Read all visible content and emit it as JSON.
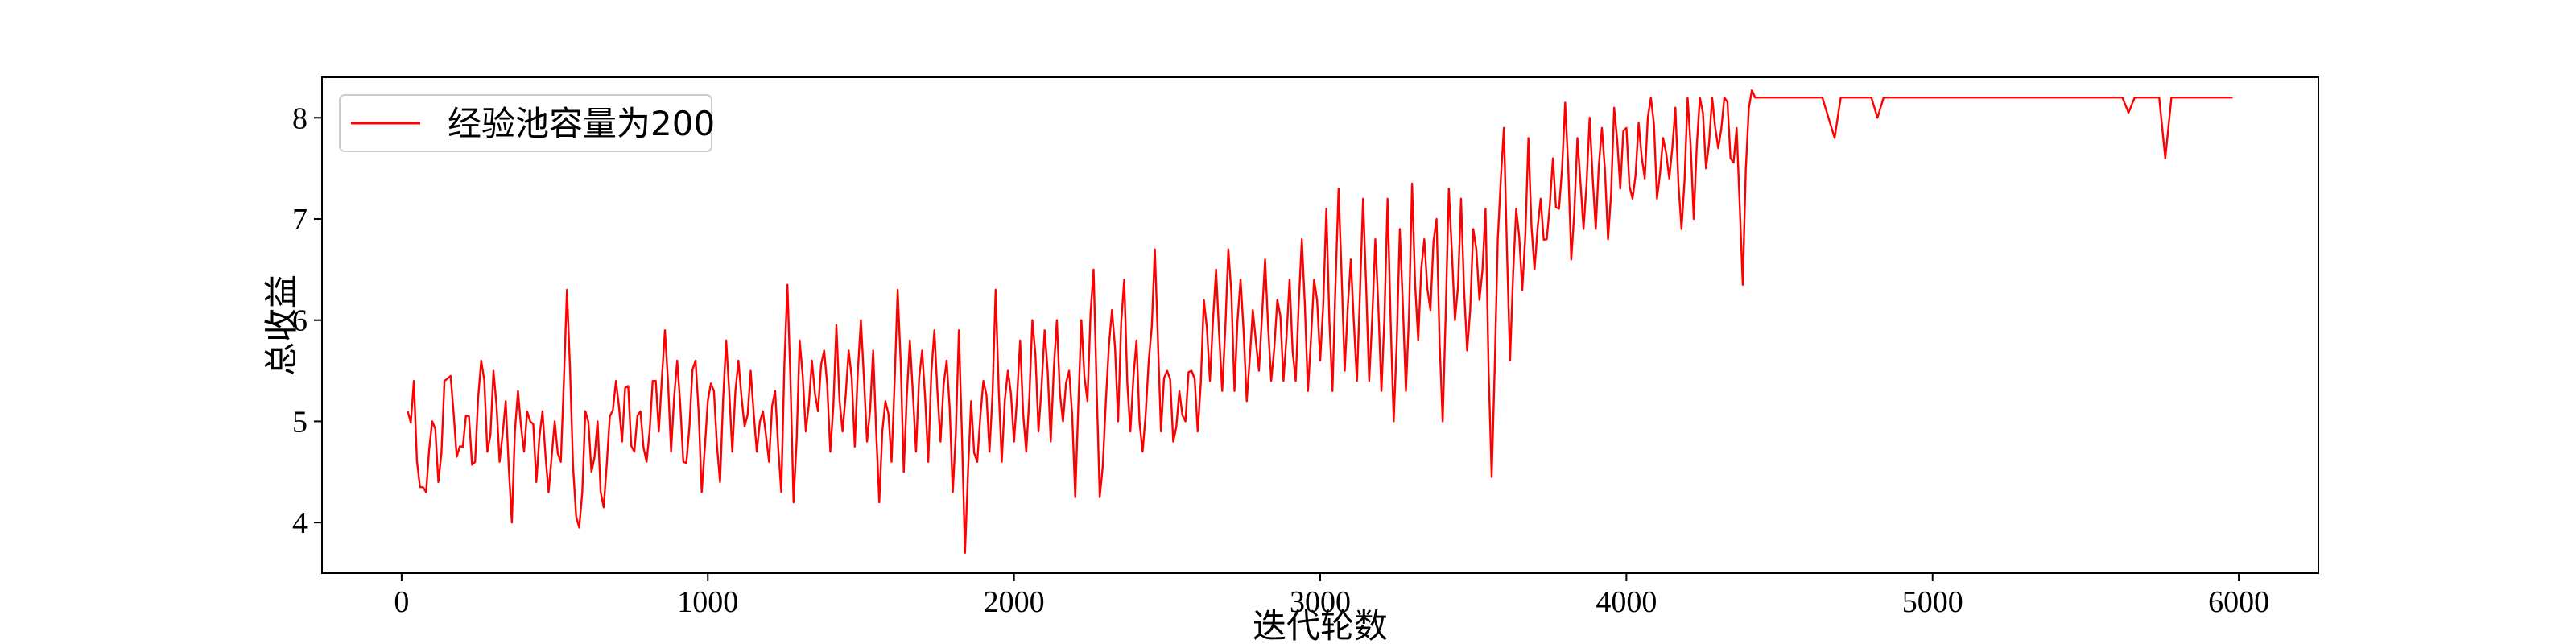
{
  "chart_data": {
    "type": "line",
    "title": "",
    "xlabel": "迭代轮数",
    "ylabel": "总收益",
    "xlim": [
      -260,
      6260
    ],
    "ylim": [
      3.5,
      8.4
    ],
    "xticks": [
      0,
      1000,
      2000,
      3000,
      4000,
      5000,
      6000
    ],
    "yticks": [
      4,
      5,
      6,
      7,
      8
    ],
    "grid": false,
    "legend_position": "upper-left",
    "series": [
      {
        "name": "经验池容量为200",
        "color": "#ff0000",
        "x_start": 20,
        "x_step": 10,
        "keypoints": [
          [
            20,
            5.1
          ],
          [
            40,
            5.4
          ],
          [
            60,
            4.35
          ],
          [
            80,
            4.3
          ],
          [
            100,
            5.0
          ],
          [
            120,
            4.4
          ],
          [
            140,
            5.4
          ],
          [
            160,
            5.45
          ],
          [
            180,
            4.65
          ],
          [
            200,
            4.75
          ],
          [
            220,
            5.05
          ],
          [
            240,
            4.6
          ],
          [
            260,
            5.6
          ],
          [
            280,
            4.7
          ],
          [
            300,
            5.5
          ],
          [
            320,
            4.6
          ],
          [
            340,
            5.2
          ],
          [
            360,
            4.0
          ],
          [
            380,
            5.3
          ],
          [
            400,
            4.7
          ],
          [
            420,
            5.0
          ],
          [
            440,
            4.4
          ],
          [
            460,
            5.1
          ],
          [
            480,
            4.3
          ],
          [
            500,
            5.0
          ],
          [
            520,
            4.6
          ],
          [
            540,
            6.3
          ],
          [
            560,
            4.55
          ],
          [
            580,
            3.95
          ],
          [
            600,
            5.1
          ],
          [
            620,
            4.5
          ],
          [
            640,
            5.0
          ],
          [
            660,
            4.15
          ],
          [
            680,
            5.05
          ],
          [
            700,
            5.4
          ],
          [
            720,
            4.8
          ],
          [
            740,
            5.35
          ],
          [
            760,
            4.7
          ],
          [
            780,
            5.1
          ],
          [
            800,
            4.6
          ],
          [
            820,
            5.4
          ],
          [
            840,
            4.9
          ],
          [
            860,
            5.9
          ],
          [
            880,
            4.7
          ],
          [
            900,
            5.6
          ],
          [
            920,
            4.6
          ],
          [
            940,
            4.95
          ],
          [
            960,
            5.6
          ],
          [
            980,
            4.3
          ],
          [
            1000,
            5.2
          ],
          [
            1020,
            5.3
          ],
          [
            1040,
            4.4
          ],
          [
            1060,
            5.8
          ],
          [
            1080,
            4.7
          ],
          [
            1100,
            5.6
          ],
          [
            1120,
            4.95
          ],
          [
            1140,
            5.5
          ],
          [
            1160,
            4.7
          ],
          [
            1180,
            5.1
          ],
          [
            1200,
            4.6
          ],
          [
            1220,
            5.3
          ],
          [
            1240,
            4.3
          ],
          [
            1260,
            6.35
          ],
          [
            1280,
            4.2
          ],
          [
            1300,
            5.8
          ],
          [
            1320,
            4.9
          ],
          [
            1340,
            5.6
          ],
          [
            1360,
            5.1
          ],
          [
            1380,
            5.7
          ],
          [
            1400,
            4.7
          ],
          [
            1420,
            5.95
          ],
          [
            1440,
            4.9
          ],
          [
            1460,
            5.7
          ],
          [
            1480,
            4.75
          ],
          [
            1500,
            6.0
          ],
          [
            1520,
            4.8
          ],
          [
            1540,
            5.7
          ],
          [
            1560,
            4.2
          ],
          [
            1580,
            5.2
          ],
          [
            1600,
            4.6
          ],
          [
            1620,
            6.3
          ],
          [
            1640,
            4.5
          ],
          [
            1660,
            5.8
          ],
          [
            1680,
            4.7
          ],
          [
            1700,
            5.7
          ],
          [
            1720,
            4.6
          ],
          [
            1740,
            5.9
          ],
          [
            1760,
            4.8
          ],
          [
            1780,
            5.6
          ],
          [
            1800,
            4.3
          ],
          [
            1820,
            5.9
          ],
          [
            1840,
            3.7
          ],
          [
            1860,
            5.2
          ],
          [
            1880,
            4.6
          ],
          [
            1900,
            5.4
          ],
          [
            1920,
            4.7
          ],
          [
            1940,
            6.3
          ],
          [
            1960,
            4.6
          ],
          [
            1980,
            5.5
          ],
          [
            2000,
            4.8
          ],
          [
            2020,
            5.8
          ],
          [
            2040,
            4.7
          ],
          [
            2060,
            6.0
          ],
          [
            2080,
            4.9
          ],
          [
            2100,
            5.9
          ],
          [
            2120,
            4.8
          ],
          [
            2140,
            6.0
          ],
          [
            2160,
            5.0
          ],
          [
            2180,
            5.5
          ],
          [
            2200,
            4.25
          ],
          [
            2220,
            6.0
          ],
          [
            2240,
            5.2
          ],
          [
            2260,
            6.5
          ],
          [
            2280,
            4.25
          ],
          [
            2300,
            5.2
          ],
          [
            2320,
            6.1
          ],
          [
            2340,
            5.0
          ],
          [
            2360,
            6.4
          ],
          [
            2380,
            4.9
          ],
          [
            2400,
            5.8
          ],
          [
            2420,
            4.7
          ],
          [
            2440,
            5.6
          ],
          [
            2460,
            6.7
          ],
          [
            2480,
            4.9
          ],
          [
            2500,
            5.5
          ],
          [
            2520,
            4.8
          ],
          [
            2540,
            5.3
          ],
          [
            2560,
            5.0
          ],
          [
            2580,
            5.5
          ],
          [
            2600,
            4.9
          ],
          [
            2620,
            6.2
          ],
          [
            2640,
            5.4
          ],
          [
            2660,
            6.5
          ],
          [
            2680,
            5.3
          ],
          [
            2700,
            6.7
          ],
          [
            2720,
            5.3
          ],
          [
            2740,
            6.4
          ],
          [
            2760,
            5.2
          ],
          [
            2780,
            6.1
          ],
          [
            2800,
            5.5
          ],
          [
            2820,
            6.6
          ],
          [
            2840,
            5.4
          ],
          [
            2860,
            6.2
          ],
          [
            2880,
            5.4
          ],
          [
            2900,
            6.4
          ],
          [
            2920,
            5.4
          ],
          [
            2940,
            6.8
          ],
          [
            2960,
            5.3
          ],
          [
            2980,
            6.4
          ],
          [
            3000,
            5.6
          ],
          [
            3020,
            7.1
          ],
          [
            3040,
            5.3
          ],
          [
            3060,
            7.3
          ],
          [
            3080,
            5.5
          ],
          [
            3100,
            6.6
          ],
          [
            3120,
            5.4
          ],
          [
            3140,
            7.2
          ],
          [
            3160,
            5.4
          ],
          [
            3180,
            6.8
          ],
          [
            3200,
            5.3
          ],
          [
            3220,
            7.2
          ],
          [
            3240,
            5.0
          ],
          [
            3260,
            6.9
          ],
          [
            3280,
            5.3
          ],
          [
            3300,
            7.35
          ],
          [
            3320,
            5.8
          ],
          [
            3340,
            6.8
          ],
          [
            3360,
            6.1
          ],
          [
            3380,
            7.0
          ],
          [
            3400,
            5.0
          ],
          [
            3420,
            7.3
          ],
          [
            3440,
            6.0
          ],
          [
            3460,
            7.2
          ],
          [
            3480,
            5.7
          ],
          [
            3500,
            6.9
          ],
          [
            3520,
            6.2
          ],
          [
            3540,
            7.1
          ],
          [
            3560,
            4.45
          ],
          [
            3580,
            6.8
          ],
          [
            3600,
            7.9
          ],
          [
            3620,
            5.6
          ],
          [
            3640,
            7.1
          ],
          [
            3660,
            6.3
          ],
          [
            3680,
            7.8
          ],
          [
            3700,
            6.5
          ],
          [
            3720,
            7.2
          ],
          [
            3740,
            6.8
          ],
          [
            3760,
            7.6
          ],
          [
            3780,
            7.1
          ],
          [
            3800,
            8.15
          ],
          [
            3820,
            6.6
          ],
          [
            3840,
            7.8
          ],
          [
            3860,
            6.9
          ],
          [
            3880,
            8.0
          ],
          [
            3900,
            6.9
          ],
          [
            3920,
            7.9
          ],
          [
            3940,
            6.8
          ],
          [
            3960,
            8.1
          ],
          [
            3980,
            7.3
          ],
          [
            4000,
            7.9
          ],
          [
            4020,
            7.2
          ],
          [
            4040,
            7.95
          ],
          [
            4060,
            7.4
          ],
          [
            4080,
            8.2
          ],
          [
            4100,
            7.2
          ],
          [
            4120,
            7.8
          ],
          [
            4140,
            7.4
          ],
          [
            4160,
            8.1
          ],
          [
            4180,
            6.9
          ],
          [
            4200,
            8.2
          ],
          [
            4220,
            7.0
          ],
          [
            4240,
            8.2
          ],
          [
            4260,
            7.5
          ],
          [
            4280,
            8.2
          ],
          [
            4300,
            7.7
          ],
          [
            4320,
            8.2
          ],
          [
            4340,
            7.6
          ],
          [
            4360,
            7.9
          ],
          [
            4380,
            6.35
          ],
          [
            4400,
            8.1
          ],
          [
            4420,
            8.2
          ],
          [
            4640,
            8.2
          ],
          [
            4660,
            8.0
          ],
          [
            4680,
            7.8
          ],
          [
            4700,
            8.2
          ],
          [
            4800,
            8.2
          ],
          [
            4820,
            8.0
          ],
          [
            4840,
            8.2
          ],
          [
            5620,
            8.2
          ],
          [
            5640,
            8.05
          ],
          [
            5660,
            8.2
          ],
          [
            5740,
            8.2
          ],
          [
            5760,
            7.6
          ],
          [
            5780,
            8.2
          ],
          [
            5980,
            8.2
          ]
        ]
      }
    ]
  }
}
